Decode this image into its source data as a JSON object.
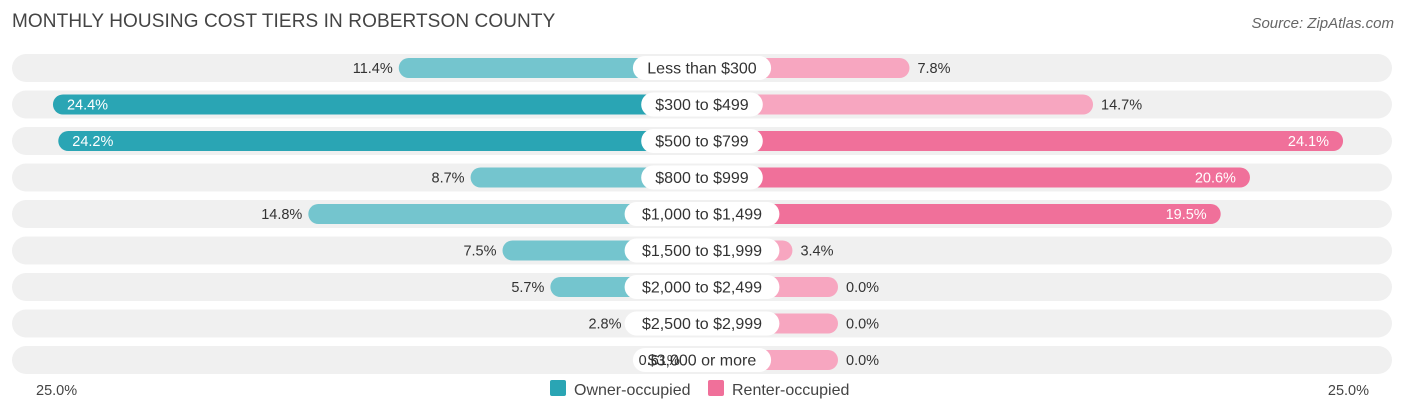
{
  "title": "MONTHLY HOUSING COST TIERS IN ROBERTSON COUNTY",
  "source": "Source: ZipAtlas.com",
  "colors": {
    "owner": "#2aa5b4",
    "owner_light": "#74c5ce",
    "renter": "#f0709a",
    "renter_light": "#f7a6c0",
    "track": "#f0f0f0"
  },
  "chart_data": {
    "type": "bar",
    "orientation": "horizontal-diverging",
    "categories": [
      "Less than $300",
      "$300 to $499",
      "$500 to $799",
      "$800 to $999",
      "$1,000 to $1,499",
      "$1,500 to $1,999",
      "$2,000 to $2,499",
      "$2,500 to $2,999",
      "$3,000 or more"
    ],
    "series": [
      {
        "name": "Owner-occupied",
        "values": [
          11.4,
          24.4,
          24.2,
          8.7,
          14.8,
          7.5,
          5.7,
          2.8,
          0.61
        ],
        "labels": [
          "11.4%",
          "24.4%",
          "24.2%",
          "8.7%",
          "14.8%",
          "7.5%",
          "5.7%",
          "2.8%",
          "0.61%"
        ]
      },
      {
        "name": "Renter-occupied",
        "values": [
          7.8,
          14.7,
          24.1,
          20.6,
          19.5,
          3.4,
          0.0,
          0.0,
          0.0
        ],
        "labels": [
          "7.8%",
          "14.7%",
          "24.1%",
          "20.6%",
          "19.5%",
          "3.4%",
          "0.0%",
          "0.0%",
          "0.0%"
        ]
      }
    ],
    "xlim": [
      -25,
      25
    ],
    "axis_min_label": "25.0%",
    "axis_max_label": "25.0%",
    "legend_position": "bottom-center"
  }
}
